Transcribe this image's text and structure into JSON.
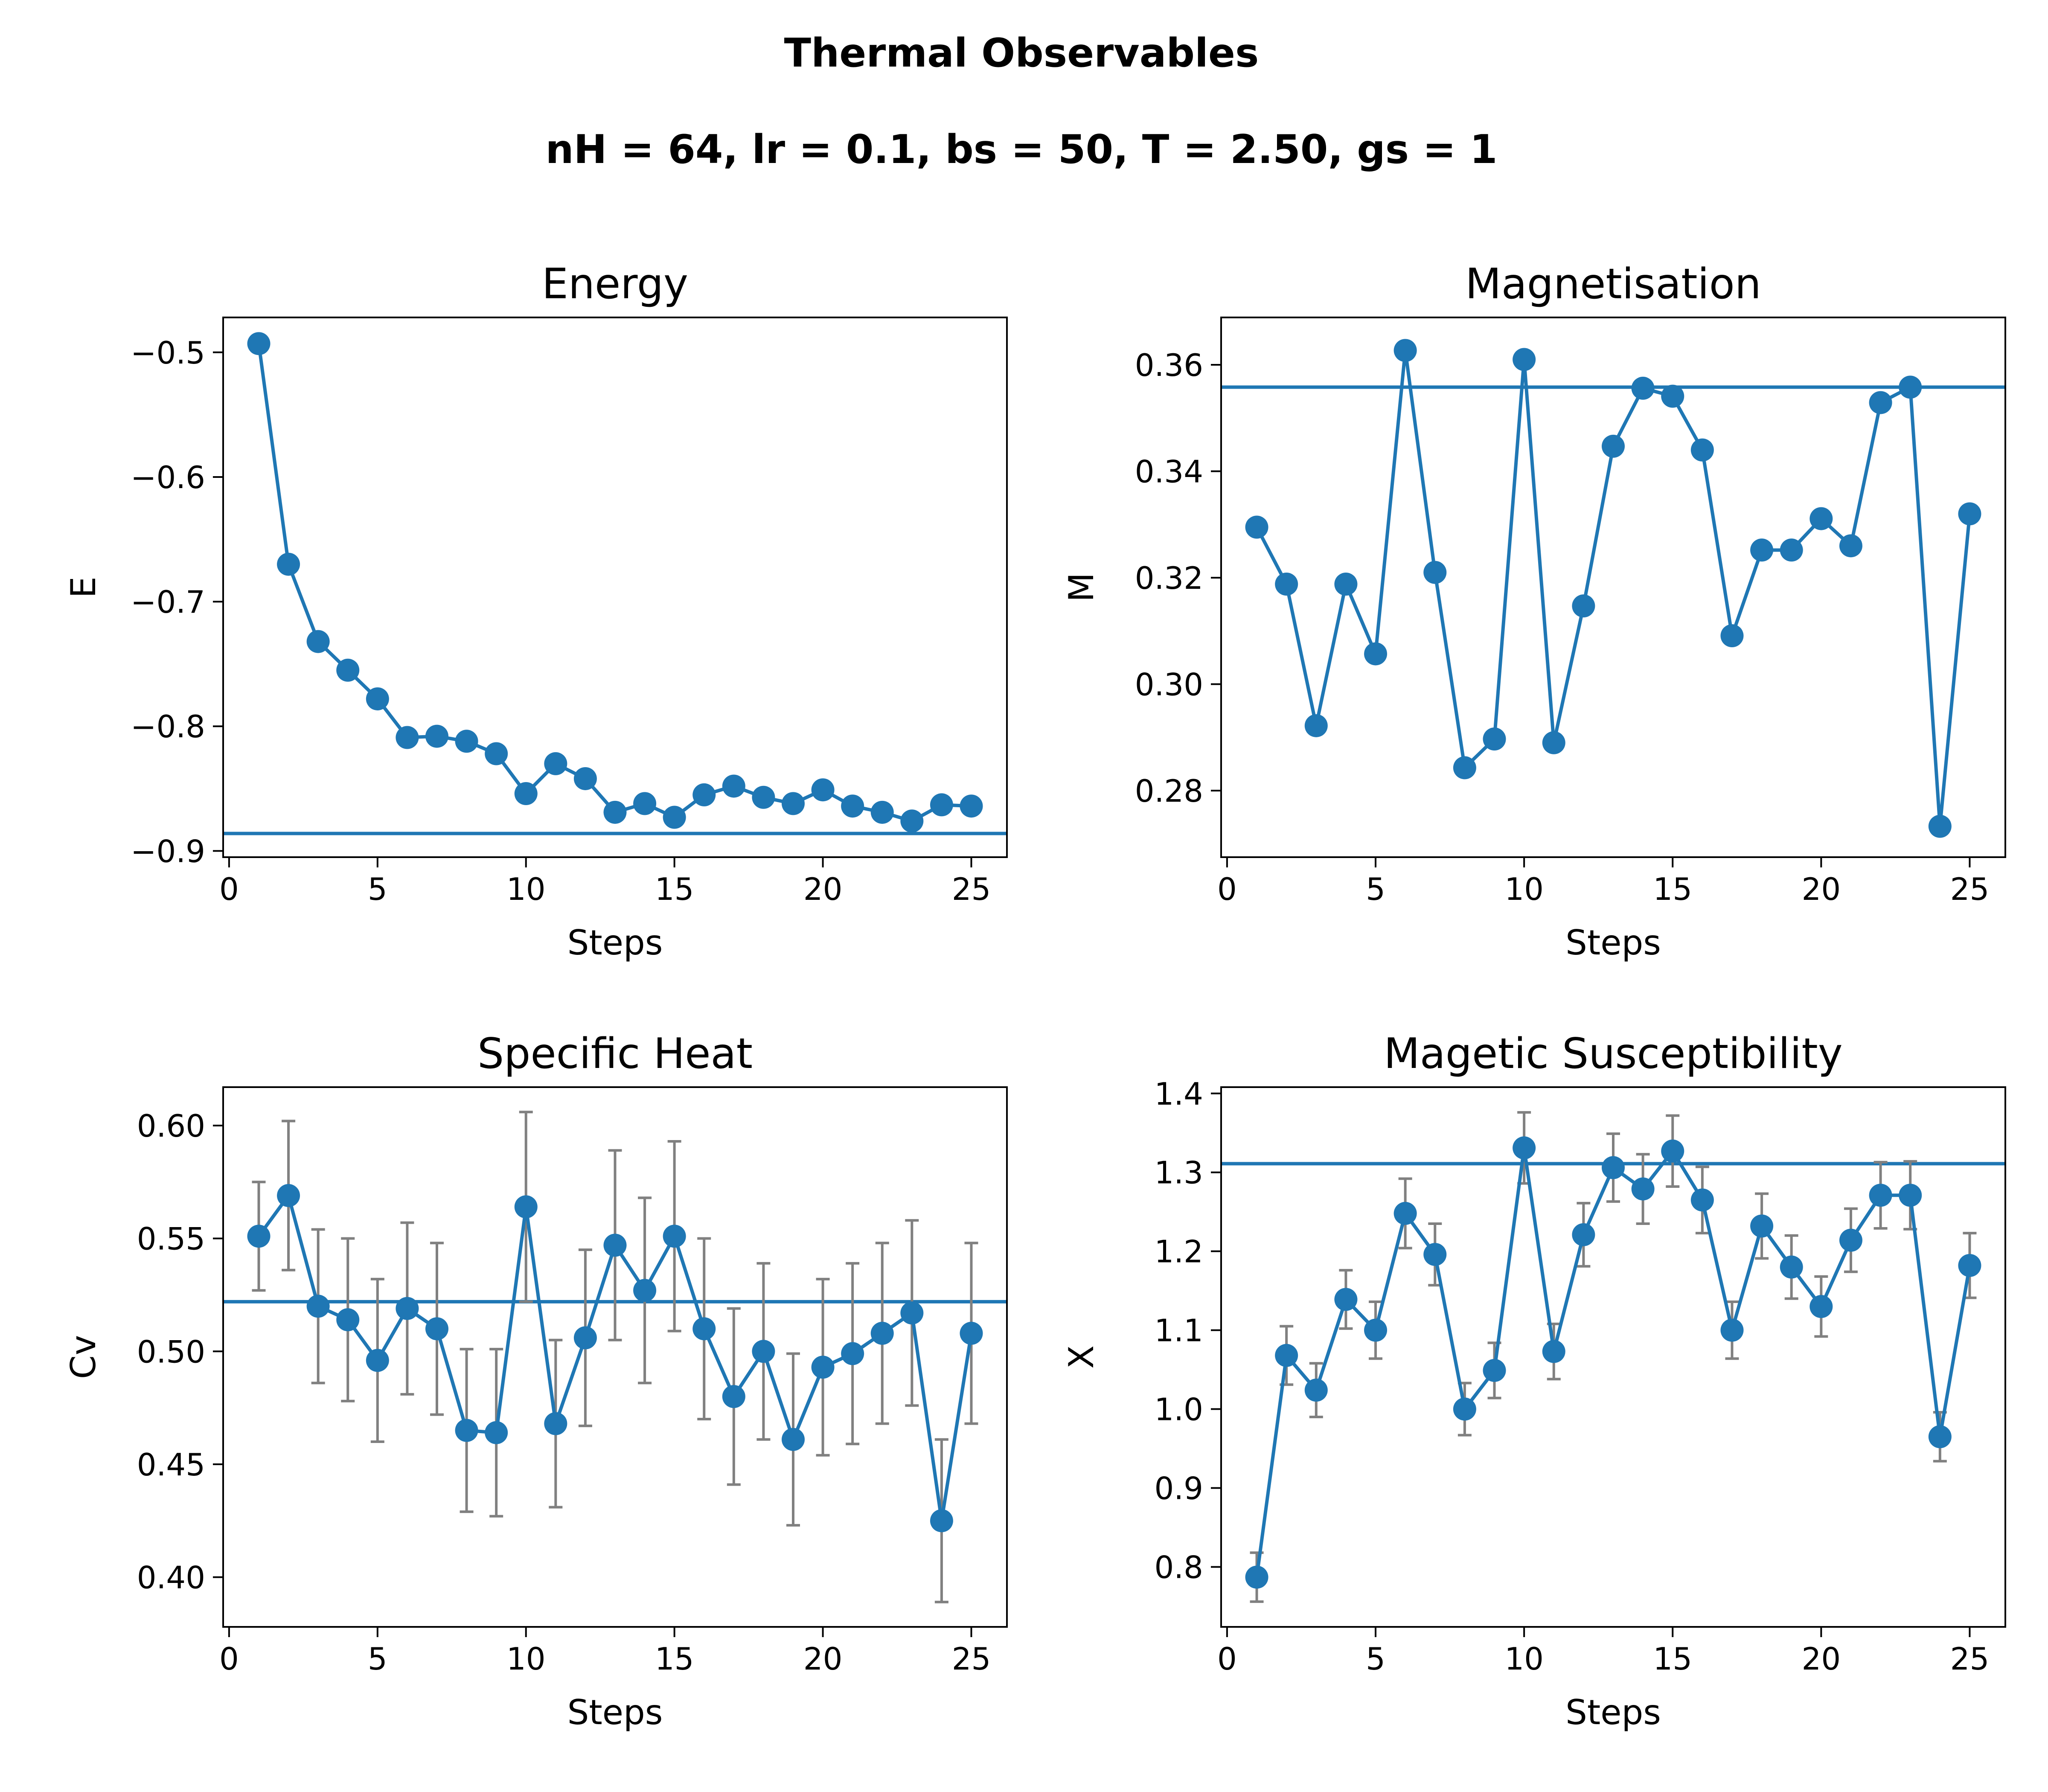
{
  "figure": {
    "title": "Thermal Observables",
    "subtitle": "nH = 64, lr = 0.1, bs = 50,  T = 2.50, gs = 1"
  },
  "colors": {
    "series": "#1f77b4",
    "errorbar": "#808080",
    "axes": "#000000",
    "background": "#ffffff"
  },
  "chart_data": [
    {
      "type": "line",
      "title": "Energy",
      "xlabel": "Steps",
      "ylabel": "E",
      "xlim": [
        -0.2,
        26.2
      ],
      "ylim": [
        -0.905,
        -0.472
      ],
      "xticks": [
        0,
        5,
        10,
        15,
        20,
        25
      ],
      "xtick_labels": [
        "0",
        "5",
        "10",
        "15",
        "20",
        "25"
      ],
      "yticks": [
        -0.5,
        -0.6,
        -0.7,
        -0.8,
        -0.9
      ],
      "ytick_labels": [
        "−0.5",
        "−0.6",
        "−0.7",
        "−0.8",
        "−0.9"
      ],
      "x": [
        1,
        2,
        3,
        4,
        5,
        6,
        7,
        8,
        9,
        10,
        11,
        12,
        13,
        14,
        15,
        16,
        17,
        18,
        19,
        20,
        21,
        22,
        23,
        24,
        25
      ],
      "values": [
        -0.493,
        -0.67,
        -0.732,
        -0.755,
        -0.778,
        -0.809,
        -0.808,
        -0.812,
        -0.822,
        -0.854,
        -0.83,
        -0.842,
        -0.869,
        -0.862,
        -0.873,
        -0.855,
        -0.848,
        -0.857,
        -0.862,
        -0.851,
        -0.864,
        -0.869,
        -0.876,
        -0.863,
        -0.864
      ],
      "hline": -0.886,
      "grid": false
    },
    {
      "type": "line",
      "title": "Magnetisation",
      "xlabel": "Steps",
      "ylabel": "M",
      "xlim": [
        -0.2,
        26.2
      ],
      "ylim": [
        0.2675,
        0.3689
      ],
      "xticks": [
        0,
        5,
        10,
        15,
        20,
        25
      ],
      "xtick_labels": [
        "0",
        "5",
        "10",
        "15",
        "20",
        "25"
      ],
      "yticks": [
        0.28,
        0.3,
        0.32,
        0.34,
        0.36
      ],
      "ytick_labels": [
        "0.28",
        "0.30",
        "0.32",
        "0.34",
        "0.36"
      ],
      "x": [
        1,
        2,
        3,
        4,
        5,
        6,
        7,
        8,
        9,
        10,
        11,
        12,
        13,
        14,
        15,
        16,
        17,
        18,
        19,
        20,
        21,
        22,
        23,
        24,
        25
      ],
      "values": [
        0.3295,
        0.3188,
        0.2922,
        0.3188,
        0.3057,
        0.3627,
        0.321,
        0.2843,
        0.2897,
        0.361,
        0.289,
        0.3147,
        0.3447,
        0.3556,
        0.3541,
        0.344,
        0.3091,
        0.3252,
        0.3252,
        0.3311,
        0.326,
        0.3529,
        0.3558,
        0.2733,
        0.332
      ],
      "hline": 0.3558,
      "grid": false
    },
    {
      "type": "line",
      "title": "Specific Heat",
      "xlabel": "Steps",
      "ylabel": "Cv",
      "xlim": [
        -0.2,
        26.2
      ],
      "ylim": [
        0.378,
        0.617
      ],
      "xticks": [
        0,
        5,
        10,
        15,
        20,
        25
      ],
      "xtick_labels": [
        "0",
        "5",
        "10",
        "15",
        "20",
        "25"
      ],
      "yticks": [
        0.4,
        0.45,
        0.5,
        0.55,
        0.6
      ],
      "ytick_labels": [
        "0.40",
        "0.45",
        "0.50",
        "0.55",
        "0.60"
      ],
      "x": [
        1,
        2,
        3,
        4,
        5,
        6,
        7,
        8,
        9,
        10,
        11,
        12,
        13,
        14,
        15,
        16,
        17,
        18,
        19,
        20,
        21,
        22,
        23,
        24,
        25
      ],
      "values": [
        0.551,
        0.569,
        0.52,
        0.514,
        0.496,
        0.519,
        0.51,
        0.465,
        0.464,
        0.564,
        0.468,
        0.506,
        0.547,
        0.527,
        0.551,
        0.51,
        0.48,
        0.5,
        0.461,
        0.493,
        0.499,
        0.508,
        0.517,
        0.425,
        0.508
      ],
      "errors": [
        0.024,
        0.033,
        0.034,
        0.036,
        0.036,
        0.038,
        0.038,
        0.036,
        0.037,
        0.042,
        0.037,
        0.039,
        0.042,
        0.041,
        0.042,
        0.04,
        0.039,
        0.039,
        0.038,
        0.039,
        0.04,
        0.04,
        0.041,
        0.036,
        0.04
      ],
      "hline": 0.522,
      "grid": false
    },
    {
      "type": "line",
      "title": "Magetic Susceptibility",
      "xlabel": "Steps",
      "ylabel": "X",
      "xlim": [
        -0.2,
        26.2
      ],
      "ylim": [
        0.724,
        1.408
      ],
      "xticks": [
        0,
        5,
        10,
        15,
        20,
        25
      ],
      "xtick_labels": [
        "0",
        "5",
        "10",
        "15",
        "20",
        "25"
      ],
      "yticks": [
        0.8,
        0.9,
        1.0,
        1.1,
        1.2,
        1.3,
        1.4
      ],
      "ytick_labels": [
        "0.8",
        "0.9",
        "1.0",
        "1.1",
        "1.2",
        "1.3",
        "1.4"
      ],
      "x": [
        1,
        2,
        3,
        4,
        5,
        6,
        7,
        8,
        9,
        10,
        11,
        12,
        13,
        14,
        15,
        16,
        17,
        18,
        19,
        20,
        21,
        22,
        23,
        24,
        25
      ],
      "values": [
        0.787,
        1.068,
        1.024,
        1.139,
        1.1,
        1.248,
        1.196,
        1.0,
        1.049,
        1.331,
        1.073,
        1.221,
        1.306,
        1.279,
        1.327,
        1.265,
        1.1,
        1.232,
        1.18,
        1.13,
        1.214,
        1.271,
        1.271,
        0.965,
        1.182
      ],
      "errors": [
        0.031,
        0.037,
        0.034,
        0.037,
        0.036,
        0.044,
        0.039,
        0.033,
        0.035,
        0.045,
        0.035,
        0.04,
        0.043,
        0.044,
        0.045,
        0.042,
        0.036,
        0.041,
        0.04,
        0.038,
        0.04,
        0.042,
        0.043,
        0.031,
        0.041
      ],
      "hline": 1.311,
      "grid": false
    }
  ]
}
